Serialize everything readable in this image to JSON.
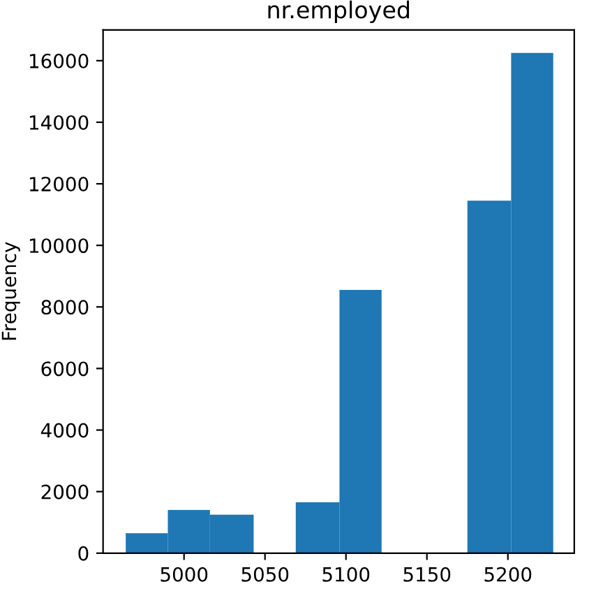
{
  "chart_data": {
    "type": "histogram",
    "title": "nr.employed",
    "ylabel": "Frequency",
    "bins": [
      4964,
      4990,
      5016,
      5043,
      5069,
      5096,
      5122,
      5175,
      5202,
      5228
    ],
    "values": [
      650,
      1400,
      1250,
      0,
      1650,
      8550,
      0,
      11450,
      16250
    ],
    "color": "#1f77b4",
    "xlim": [
      4950,
      5241
    ],
    "ylim": [
      0,
      17000
    ],
    "xticks": [
      5000,
      5050,
      5100,
      5150,
      5200
    ],
    "yticks": [
      0,
      2000,
      4000,
      6000,
      8000,
      10000,
      12000,
      14000,
      16000
    ],
    "grid": false,
    "legend": false
  }
}
